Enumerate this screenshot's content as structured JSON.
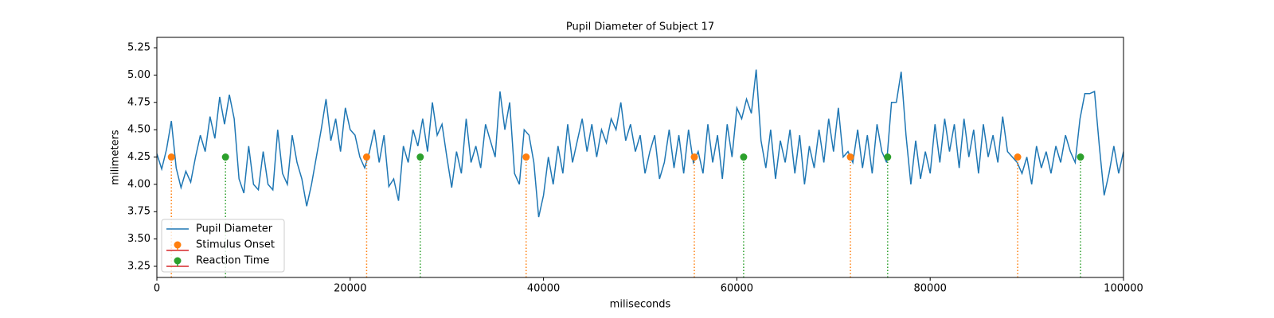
{
  "chart_data": {
    "type": "line",
    "title": "Pupil Diameter of Subject 17",
    "x_label": "miliseconds",
    "y_label": "milimeters",
    "xlim": [
      0,
      100000
    ],
    "ylim": [
      3.148,
      5.345
    ],
    "xticks": [
      0,
      20000,
      40000,
      60000,
      80000,
      100000
    ],
    "yticks": [
      3.25,
      {
        "value": 3.5,
        "label": "3.50"
      },
      3.75,
      {
        "value": 4.0,
        "label": "4.00"
      },
      4.25,
      {
        "value": 4.5,
        "label": "4.50"
      },
      4.75,
      {
        "value": 5.0,
        "label": "5.00"
      },
      5.25
    ],
    "legend_location": "lower left",
    "series": [
      {
        "name": "Pupil Diameter",
        "type": "line",
        "color": "#1f77b4",
        "x": [
          0,
          500,
          1000,
          1500,
          2000,
          2500,
          3000,
          3500,
          4000,
          4500,
          5000,
          5500,
          6000,
          6500,
          7000,
          7500,
          8000,
          8500,
          9000,
          9500,
          10000,
          10500,
          11000,
          11500,
          12000,
          12500,
          13000,
          13500,
          14000,
          14500,
          15000,
          15500,
          16000,
          16500,
          17000,
          17500,
          18000,
          18500,
          19000,
          19500,
          20000,
          20500,
          21000,
          21500,
          22000,
          22500,
          23000,
          23500,
          24000,
          24500,
          25000,
          25500,
          26000,
          26500,
          27000,
          27500,
          28000,
          28500,
          29000,
          29500,
          30000,
          30500,
          31000,
          31500,
          32000,
          32500,
          33000,
          33500,
          34000,
          34500,
          35000,
          35500,
          36000,
          36500,
          37000,
          37500,
          38000,
          38500,
          39000,
          39500,
          40000,
          40500,
          41000,
          41500,
          42000,
          42500,
          43000,
          43500,
          44000,
          44500,
          45000,
          45500,
          46000,
          46500,
          47000,
          47500,
          48000,
          48500,
          49000,
          49500,
          50000,
          50500,
          51000,
          51500,
          52000,
          52500,
          53000,
          53500,
          54000,
          54500,
          55000,
          55500,
          56000,
          56500,
          57000,
          57500,
          58000,
          58500,
          59000,
          59500,
          60000,
          60500,
          61000,
          61500,
          62000,
          62500,
          63000,
          63500,
          64000,
          64500,
          65000,
          65500,
          66000,
          66500,
          67000,
          67500,
          68000,
          68500,
          69000,
          69500,
          70000,
          70500,
          71000,
          71500,
          72000,
          72500,
          73000,
          73500,
          74000,
          74500,
          75000,
          75500,
          76000,
          76500,
          77000,
          77500,
          78000,
          78500,
          79000,
          79500,
          80000,
          80500,
          81000,
          81500,
          82000,
          82500,
          83000,
          83500,
          84000,
          84500,
          85000,
          85500,
          86000,
          86500,
          87000,
          87500,
          88000,
          88500,
          89000,
          89500,
          90000,
          90500,
          91000,
          91500,
          92000,
          92500,
          93000,
          93500,
          94000,
          94500,
          95000,
          95500,
          96000,
          96500,
          97000,
          97500,
          98000,
          98500,
          99000,
          99500,
          100000
        ],
        "values": [
          4.28,
          4.14,
          4.32,
          4.58,
          4.15,
          3.97,
          4.12,
          4.02,
          4.25,
          4.45,
          4.3,
          4.62,
          4.42,
          4.8,
          4.55,
          4.82,
          4.6,
          4.05,
          3.92,
          4.35,
          4.0,
          3.95,
          4.3,
          4.0,
          3.95,
          4.5,
          4.1,
          4.0,
          4.45,
          4.2,
          4.05,
          3.8,
          4.0,
          4.25,
          4.5,
          4.78,
          4.4,
          4.6,
          4.3,
          4.7,
          4.5,
          4.45,
          4.25,
          4.15,
          4.3,
          4.5,
          4.2,
          4.45,
          3.98,
          4.05,
          3.85,
          4.35,
          4.2,
          4.5,
          4.35,
          4.6,
          4.3,
          4.75,
          4.45,
          4.55,
          4.25,
          3.97,
          4.3,
          4.1,
          4.6,
          4.2,
          4.35,
          4.15,
          4.55,
          4.4,
          4.25,
          4.85,
          4.5,
          4.75,
          4.1,
          4.0,
          4.5,
          4.45,
          4.2,
          3.7,
          3.9,
          4.25,
          4.0,
          4.35,
          4.1,
          4.55,
          4.2,
          4.4,
          4.6,
          4.3,
          4.55,
          4.25,
          4.5,
          4.38,
          4.6,
          4.5,
          4.75,
          4.4,
          4.55,
          4.3,
          4.45,
          4.1,
          4.3,
          4.45,
          4.05,
          4.2,
          4.5,
          4.15,
          4.45,
          4.1,
          4.5,
          4.2,
          4.3,
          4.1,
          4.55,
          4.2,
          4.45,
          4.05,
          4.55,
          4.25,
          4.7,
          4.6,
          4.78,
          4.65,
          5.05,
          4.4,
          4.15,
          4.5,
          4.05,
          4.4,
          4.2,
          4.5,
          4.1,
          4.45,
          4.0,
          4.35,
          4.15,
          4.5,
          4.2,
          4.6,
          4.3,
          4.7,
          4.25,
          4.3,
          4.2,
          4.5,
          4.15,
          4.45,
          4.1,
          4.55,
          4.3,
          4.2,
          4.75,
          4.75,
          5.03,
          4.45,
          4.0,
          4.4,
          4.05,
          4.3,
          4.1,
          4.55,
          4.2,
          4.6,
          4.3,
          4.55,
          4.15,
          4.6,
          4.25,
          4.5,
          4.1,
          4.55,
          4.25,
          4.45,
          4.2,
          4.62,
          4.3,
          4.25,
          4.2,
          4.1,
          4.25,
          4.0,
          4.35,
          4.15,
          4.3,
          4.1,
          4.35,
          4.2,
          4.45,
          4.3,
          4.2,
          4.6,
          4.83,
          4.83,
          4.85,
          4.35,
          3.9,
          4.1,
          4.35,
          4.1,
          4.3
        ]
      },
      {
        "name": "Stimulus Onset",
        "type": "stem",
        "color": "#ff7f0e",
        "baseline_color": "#d62728",
        "x": [
          1500,
          21700,
          38200,
          55600,
          71750,
          89050
        ],
        "values": [
          4.25,
          4.25,
          4.25,
          4.25,
          4.25,
          4.25
        ]
      },
      {
        "name": "Reaction Time",
        "type": "stem",
        "color": "#2ca02c",
        "baseline_color": "#d62728",
        "x": [
          7100,
          27250,
          60700,
          75600,
          95550
        ],
        "values": [
          4.25,
          4.25,
          4.25,
          4.25,
          4.25
        ]
      }
    ]
  }
}
